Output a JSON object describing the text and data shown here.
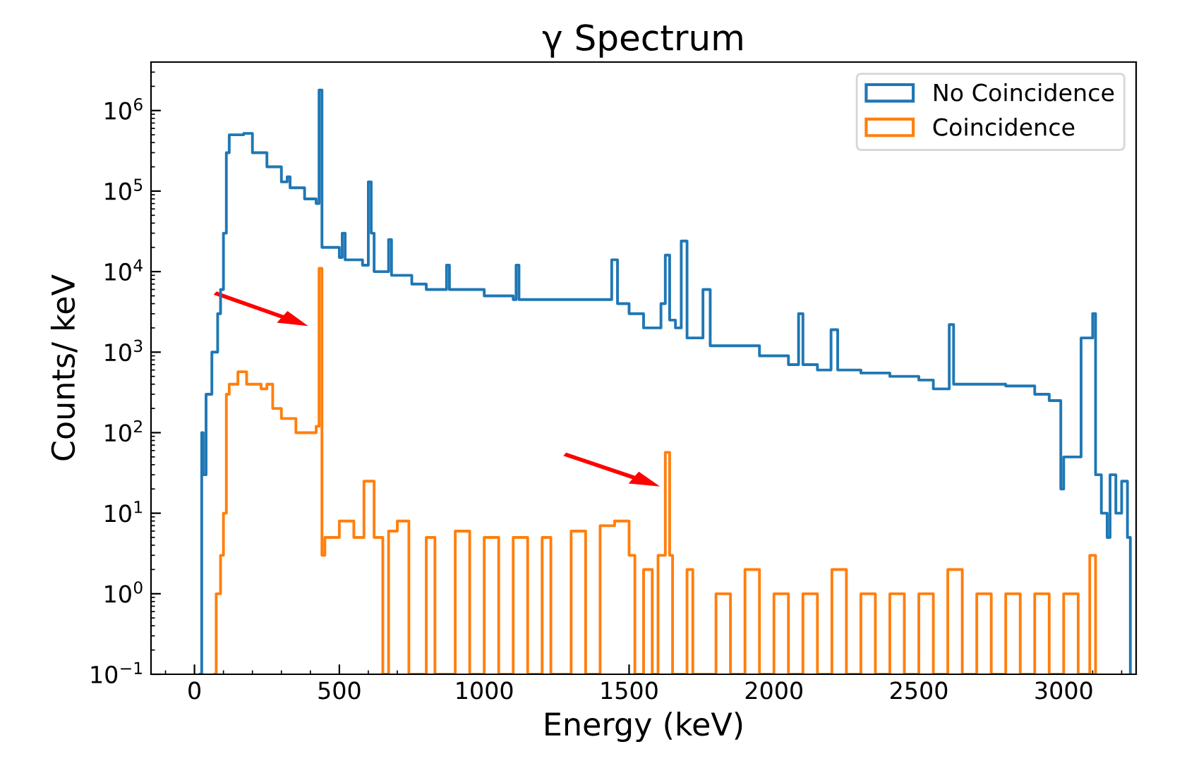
{
  "chart_data": {
    "type": "step",
    "title": "γ Spectrum",
    "xlabel": "Energy (keV)",
    "ylabel": "Counts/ keV",
    "log": "y",
    "grid": false,
    "legend": "top right",
    "xlim": [
      -150,
      3250
    ],
    "xticks": [
      0,
      500,
      1000,
      1500,
      2000,
      2500,
      3000
    ],
    "ylim": [
      0.1,
      4000000
    ],
    "yticks": [
      {
        "value": 0.1,
        "label": "10$^{−1}$"
      },
      {
        "value": 1,
        "label": "10$^{0}$"
      },
      {
        "value": 10,
        "label": "10$^{1}$"
      },
      {
        "value": 100,
        "label": "10$^{2}$"
      },
      {
        "value": 1000,
        "label": "10$^{3}$"
      },
      {
        "value": 10000,
        "label": "10$^{4}$"
      },
      {
        "value": 100000,
        "label": "10$^{5}$"
      },
      {
        "value": 1000000,
        "label": "10$^{6}$"
      }
    ],
    "series": [
      {
        "name": "No Coincidence",
        "color": "#1f77b4",
        "x": [
          20,
          25,
          30,
          40,
          60,
          80,
          90,
          100,
          110,
          120,
          150,
          170,
          200,
          250,
          300,
          320,
          330,
          380,
          420,
          430,
          440,
          500,
          510,
          520,
          580,
          600,
          610,
          620,
          650,
          670,
          680,
          750,
          800,
          860,
          870,
          880,
          1000,
          1100,
          1110,
          1120,
          1200,
          1300,
          1400,
          1440,
          1460,
          1500,
          1550,
          1590,
          1610,
          1625,
          1640,
          1660,
          1680,
          1700,
          1740,
          1755,
          1780,
          1850,
          1950,
          2050,
          2085,
          2100,
          2150,
          2197,
          2220,
          2300,
          2400,
          2500,
          2550,
          2605,
          2620,
          2700,
          2800,
          2900,
          2950,
          2990,
          3000,
          3060,
          3100,
          3110,
          3130,
          3150,
          3160,
          3180,
          3200,
          3220,
          3230
        ],
        "values": [
          0.1,
          100,
          30,
          300,
          1000,
          3000,
          6000,
          30000,
          300000,
          500000,
          500000,
          520000,
          300000,
          200000,
          130000,
          150000,
          110000,
          80000,
          70000,
          1800000,
          20000,
          15000,
          30000,
          14000,
          12000,
          130000,
          30000,
          10000,
          10000,
          25000,
          9000,
          7000,
          6000,
          6000,
          12000,
          6000,
          5000,
          4500,
          12000,
          4500,
          4500,
          4500,
          4500,
          14000,
          4000,
          3000,
          2000,
          2000,
          4000,
          16000,
          2500,
          2000,
          24000,
          1500,
          1500,
          6000,
          1200,
          1200,
          900,
          700,
          3000,
          700,
          600,
          1900,
          600,
          550,
          500,
          450,
          350,
          2200,
          400,
          400,
          380,
          300,
          250,
          20,
          50,
          1500,
          3000,
          30,
          10,
          5,
          30,
          10,
          25,
          5,
          0.1
        ]
      },
      {
        "name": "Coincidence",
        "color": "#ff7f0e",
        "x": [
          70,
          75,
          90,
          100,
          110,
          120,
          150,
          180,
          200,
          230,
          250,
          270,
          300,
          350,
          400,
          420,
          430,
          440,
          450,
          500,
          550,
          585,
          620,
          650,
          670,
          700,
          740,
          800,
          830,
          900,
          950,
          1000,
          1050,
          1100,
          1150,
          1200,
          1230,
          1300,
          1350,
          1400,
          1450,
          1500,
          1520,
          1550,
          1580,
          1600,
          1625,
          1640,
          1650,
          1700,
          1720,
          1800,
          1850,
          1900,
          1950,
          2000,
          2050,
          2100,
          2150,
          2200,
          2250,
          2300,
          2350,
          2400,
          2450,
          2500,
          2550,
          2600,
          2650,
          2700,
          2750,
          2800,
          2850,
          2900,
          2950,
          3000,
          3050,
          3090,
          3110
        ],
        "values": [
          0.1,
          1,
          3,
          10,
          300,
          400,
          570,
          400,
          400,
          350,
          400,
          200,
          150,
          100,
          100,
          120,
          11000,
          3,
          5,
          8,
          5,
          25,
          5,
          0.1,
          6,
          8,
          0.1,
          5,
          0.1,
          6,
          0.1,
          5,
          0.1,
          5,
          0.1,
          5,
          0.1,
          6,
          0.1,
          7,
          8,
          3,
          0.1,
          2,
          0.1,
          3,
          57,
          3,
          0.1,
          2,
          0.1,
          1,
          0.1,
          2,
          0.1,
          1,
          0.1,
          1,
          0.1,
          2,
          0.1,
          1,
          0.1,
          1,
          0.1,
          1,
          0.1,
          2,
          0.1,
          1,
          0.1,
          1,
          0.1,
          1,
          0.1,
          1,
          0.1,
          3,
          0.1
        ]
      }
    ]
  }
}
